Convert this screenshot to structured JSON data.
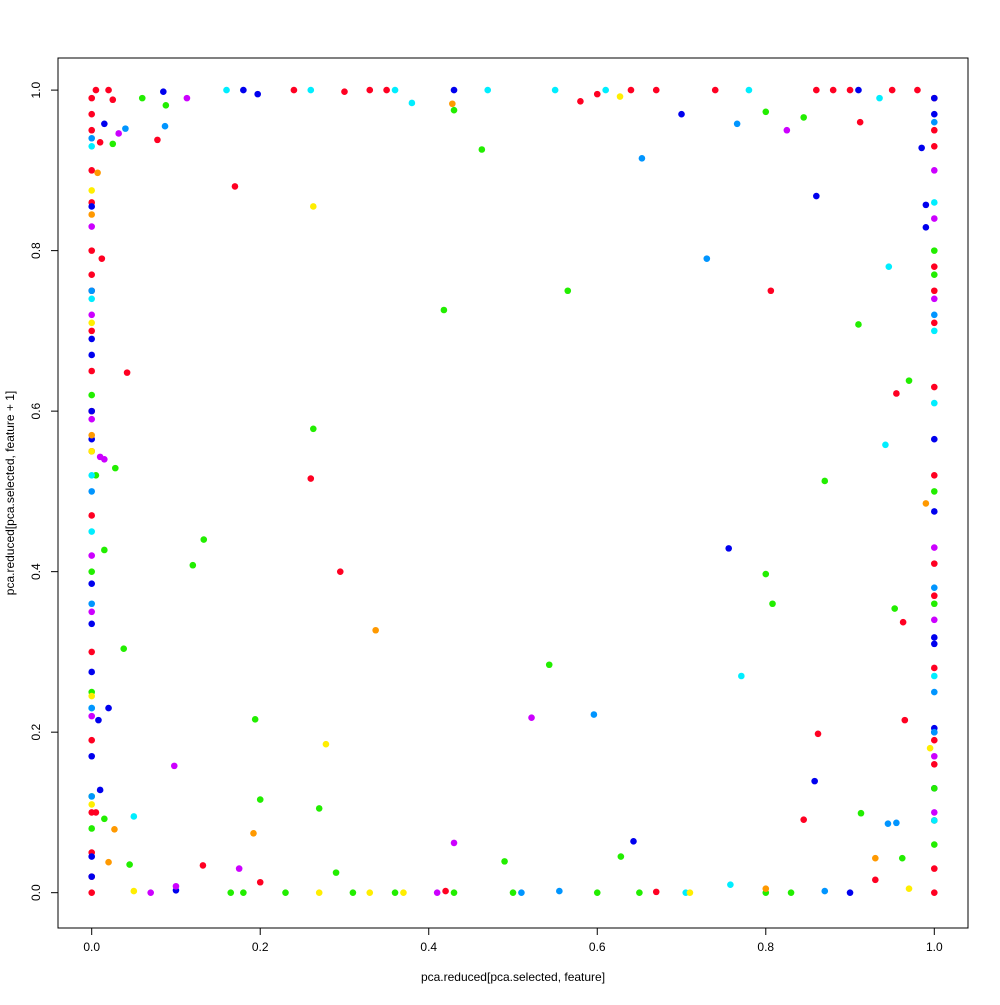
{
  "chart_data": {
    "type": "scatter",
    "x_label": "pca.reduced[pca.selected, feature]",
    "y_label": "pca.reduced[pca.selected, feature + 1]",
    "xlim": [
      -0.04,
      1.04
    ],
    "ylim": [
      -0.044,
      1.04
    ],
    "xticks": [
      {
        "value": 0,
        "label": "0.0"
      },
      0.2,
      0.4,
      0.6,
      0.8,
      {
        "value": 1,
        "label": "1.0"
      }
    ],
    "yticks": [
      {
        "value": 0,
        "label": "0.0"
      },
      0.2,
      0.4,
      0.6,
      0.8,
      {
        "value": 1,
        "label": "1.0"
      }
    ],
    "series": [
      {
        "color": "#ff0022",
        "x": [
          0.17,
          0.042,
          0.26,
          0.295,
          0.806,
          0.862,
          0.845,
          0.965,
          0.963,
          0.955,
          0.078,
          0.012,
          0.58,
          0.2,
          0.132,
          0.912,
          0.93,
          0.01,
          0.025,
          0.3,
          0.6,
          0.42,
          0.67,
          0.005,
          0,
          0,
          0,
          0,
          0,
          0,
          0,
          0,
          0,
          0,
          0,
          0,
          0,
          0,
          0,
          0,
          0,
          0,
          0,
          1,
          1,
          1,
          1,
          1,
          1,
          1,
          1,
          1,
          1,
          1,
          1,
          1,
          1,
          1,
          1,
          0.005,
          0.02,
          0.24,
          0.33,
          0.35,
          0.64,
          0.67,
          0.74,
          0.86,
          0.88,
          0.9,
          0.95,
          0.98
        ],
        "y": [
          0.88,
          0.648,
          0.516,
          0.4,
          0.75,
          0.198,
          0.091,
          0.215,
          0.337,
          0.622,
          0.938,
          0.79,
          0.986,
          0.013,
          0.034,
          0.96,
          0.016,
          0.935,
          0.988,
          0.998,
          0.995,
          0.002,
          0.001,
          0.1,
          0.99,
          0.97,
          0.95,
          0.9,
          0.86,
          0.8,
          0.77,
          0.75,
          0.7,
          0.65,
          0.6,
          0.55,
          0.47,
          0.3,
          0.19,
          0.1,
          0.05,
          0.02,
          0,
          0.99,
          0.95,
          0.93,
          0.78,
          0.75,
          0.71,
          0.63,
          0.52,
          0.41,
          0.37,
          0.28,
          0.19,
          0.16,
          0.09,
          0.03,
          0,
          1,
          1,
          1,
          1,
          1,
          1,
          1,
          1,
          1,
          1,
          1,
          1,
          1
        ]
      },
      {
        "color": "#0000ee",
        "x": [
          0.7,
          0.756,
          0.858,
          0.643,
          0.86,
          0.015,
          0.02,
          0.008,
          0.01,
          0.197,
          0.18,
          0.085,
          0.99,
          0.99,
          0.985,
          0.43,
          0.91,
          0.1,
          0.9,
          0,
          0,
          0,
          0,
          0,
          0,
          0,
          0,
          0,
          0,
          0,
          1,
          1,
          1,
          1,
          1,
          1,
          1,
          1,
          1
        ],
        "y": [
          0.97,
          0.429,
          0.139,
          0.064,
          0.868,
          0.958,
          0.23,
          0.215,
          0.128,
          0.995,
          1,
          0.998,
          0.857,
          0.829,
          0.928,
          1,
          1,
          0.003,
          0,
          0.855,
          0.69,
          0.67,
          0.6,
          0.565,
          0.385,
          0.335,
          0.275,
          0.17,
          0.045,
          0.02,
          0.565,
          0.475,
          0.318,
          0.31,
          0.205,
          0.2,
          0.13,
          0.99,
          0.97
        ]
      },
      {
        "color": "#22ee00",
        "x": [
          0.463,
          0.565,
          0.418,
          0.263,
          0.133,
          0.12,
          0.038,
          0.028,
          0.015,
          0.543,
          0.194,
          0.2,
          0.27,
          0.29,
          0.49,
          0.628,
          0.8,
          0.808,
          0.87,
          0.91,
          0.97,
          0.953,
          0.962,
          0.913,
          0.845,
          0.8,
          0.43,
          0.088,
          0.025,
          0.06,
          0.045,
          0.015,
          0.005,
          0,
          0,
          0,
          0,
          0,
          1,
          1,
          1,
          1,
          1,
          1,
          0.165,
          0.18,
          0.23,
          0.31,
          0.36,
          0.43,
          0.5,
          0.6,
          0.65,
          0.8,
          0.83
        ],
        "y": [
          0.926,
          0.75,
          0.726,
          0.578,
          0.44,
          0.408,
          0.304,
          0.529,
          0.427,
          0.284,
          0.216,
          0.116,
          0.105,
          0.025,
          0.039,
          0.045,
          0.397,
          0.36,
          0.513,
          0.708,
          0.638,
          0.354,
          0.043,
          0.099,
          0.966,
          0.973,
          0.975,
          0.981,
          0.933,
          0.99,
          0.035,
          0.092,
          0.52,
          0.62,
          0.4,
          0.25,
          0.12,
          0.08,
          0.8,
          0.77,
          0.5,
          0.36,
          0.13,
          0.06,
          0,
          0,
          0,
          0,
          0,
          0,
          0,
          0,
          0,
          0,
          0
        ]
      },
      {
        "color": "#00eeff",
        "x": [
          0.946,
          0.942,
          0.771,
          0.05,
          0.38,
          0.36,
          0.16,
          0.26,
          0.47,
          0.55,
          0.61,
          0.78,
          0.935,
          0.705,
          0.758,
          0,
          0,
          0,
          0,
          0,
          1,
          1,
          1,
          1,
          1
        ],
        "y": [
          0.78,
          0.558,
          0.27,
          0.095,
          0.984,
          1,
          1,
          1,
          1,
          1,
          1,
          1,
          0.99,
          0,
          0.01,
          0.93,
          0.74,
          0.52,
          0.45,
          0.23,
          0.86,
          0.7,
          0.61,
          0.27,
          0.09
        ]
      },
      {
        "color": "#0095ff",
        "x": [
          0.73,
          0.653,
          0.596,
          0.766,
          0.087,
          0.04,
          0.945,
          0.955,
          0.555,
          0.87,
          0.51,
          0,
          0,
          0,
          0,
          0,
          0,
          1,
          1,
          1,
          1,
          1
        ],
        "y": [
          0.79,
          0.915,
          0.222,
          0.958,
          0.955,
          0.952,
          0.086,
          0.087,
          0.002,
          0.002,
          0,
          0.94,
          0.75,
          0.5,
          0.36,
          0.23,
          0.12,
          0.96,
          0.72,
          0.38,
          0.25,
          0.2
        ]
      },
      {
        "color": "#cc00ff",
        "x": [
          0.522,
          0.098,
          0.43,
          0.175,
          0.1,
          0.825,
          0.113,
          0.032,
          0.01,
          0.015,
          0.41,
          0.07,
          0,
          0,
          0,
          0,
          0,
          0,
          1,
          1,
          1,
          1,
          1,
          1,
          1
        ],
        "y": [
          0.218,
          0.158,
          0.062,
          0.03,
          0.008,
          0.95,
          0.99,
          0.946,
          0.543,
          0.54,
          0,
          0,
          0.83,
          0.72,
          0.59,
          0.42,
          0.35,
          0.22,
          0.9,
          0.84,
          0.74,
          0.43,
          0.34,
          0.17,
          0.1
        ]
      },
      {
        "color": "#ffee00",
        "x": [
          0.263,
          0.278,
          0.627,
          0.33,
          0.27,
          0.37,
          0.71,
          0.05,
          0.97,
          0.995,
          0,
          0,
          0,
          0,
          0
        ],
        "y": [
          0.855,
          0.185,
          0.992,
          0,
          0,
          0,
          0,
          0.002,
          0.005,
          0.18,
          0.875,
          0.71,
          0.55,
          0.245,
          0.11
        ]
      },
      {
        "color": "#ff9900",
        "x": [
          0.337,
          0.192,
          0.027,
          0.428,
          0.007,
          0.02,
          0.8,
          0.93,
          0.99,
          0,
          0
        ],
        "y": [
          0.327,
          0.074,
          0.079,
          0.983,
          0.897,
          0.038,
          0.005,
          0.043,
          0.485,
          0.845,
          0.57
        ]
      }
    ]
  }
}
